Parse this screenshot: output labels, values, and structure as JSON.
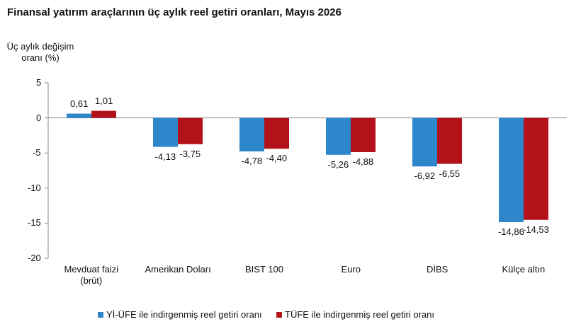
{
  "chart_data": {
    "type": "bar",
    "title": "Finansal yatırım araçlarının üç aylık reel getiri oranları, Mayıs 2026",
    "y_label": "Üç aylık değişim\noranı (%)",
    "categories": [
      "Mevduat faizi\n(brüt)",
      "Amerikan Doları",
      "BIST 100",
      "Euro",
      "DİBS",
      "Külçe altın"
    ],
    "series": [
      {
        "name": "Yİ-ÜFE ile indirgenmiş reel getiri oranı",
        "color": "#2e86cb",
        "values": [
          0.61,
          -4.13,
          -4.78,
          -5.26,
          -6.92,
          -14.86
        ],
        "value_labels": [
          "0,61",
          "-4,13",
          "-4,78",
          "-5,26",
          "-6,92",
          "-14,86"
        ]
      },
      {
        "name": "TÜFE ile indirgenmiş reel getiri oranı",
        "color": "#b3121b",
        "values": [
          1.01,
          -3.75,
          -4.4,
          -4.88,
          -6.55,
          -14.53
        ],
        "value_labels": [
          "1,01",
          "-3,75",
          "-4,40",
          "-4,88",
          "-6,55",
          "-14,53"
        ]
      }
    ],
    "ylim": [
      -20,
      5
    ],
    "yticks": [
      -20,
      -15,
      -10,
      -5,
      0,
      5
    ],
    "grid": false,
    "legend": "bottom"
  }
}
